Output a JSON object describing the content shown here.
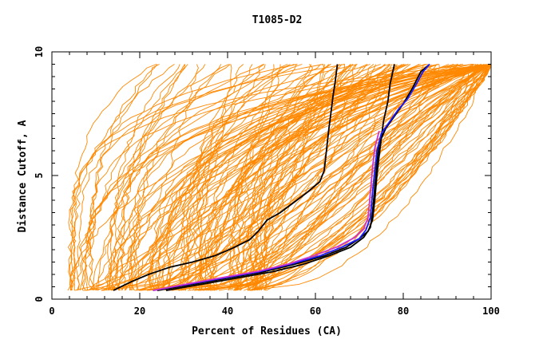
{
  "chart_data": {
    "type": "line",
    "title": "T1085-D2",
    "xlabel": "Percent of Residues (CA)",
    "ylabel": "Distance Cutoff, A",
    "xlim": [
      0,
      100
    ],
    "ylim": [
      0,
      10
    ],
    "x_ticks": [
      0,
      20,
      40,
      60,
      80,
      100
    ],
    "y_ticks": [
      0,
      5,
      10
    ],
    "grid": false,
    "legend": "none",
    "colors": {
      "bundle": "#ff8800",
      "highlight_black": "#000000",
      "highlight_blue": "#1a1aff",
      "highlight_magenta": "#cc33cc"
    },
    "bundle_count": 160,
    "highlight_series": [
      {
        "color": "#000000",
        "points": [
          [
            14,
            0.35
          ],
          [
            18,
            0.7
          ],
          [
            22,
            1.0
          ],
          [
            27,
            1.3
          ],
          [
            32,
            1.5
          ],
          [
            37,
            1.75
          ],
          [
            41,
            2.05
          ],
          [
            45,
            2.4
          ],
          [
            47,
            2.75
          ],
          [
            49,
            3.2
          ],
          [
            52,
            3.5
          ],
          [
            55,
            3.9
          ],
          [
            58,
            4.3
          ],
          [
            61,
            4.75
          ],
          [
            62,
            5.2
          ],
          [
            62.5,
            6
          ],
          [
            63,
            6.8
          ],
          [
            63.5,
            7.5
          ],
          [
            64,
            8.2
          ],
          [
            64.5,
            8.8
          ],
          [
            65,
            9.5
          ]
        ]
      },
      {
        "color": "#000000",
        "points": [
          [
            24,
            0.35
          ],
          [
            32,
            0.6
          ],
          [
            40,
            0.85
          ],
          [
            48,
            1.1
          ],
          [
            55,
            1.4
          ],
          [
            62,
            1.75
          ],
          [
            67,
            2.1
          ],
          [
            70,
            2.45
          ],
          [
            72,
            2.75
          ],
          [
            73,
            3.2
          ],
          [
            73.5,
            4.0
          ],
          [
            74,
            5.0
          ],
          [
            74.5,
            5.8
          ],
          [
            75,
            6.5
          ],
          [
            75.5,
            7.2
          ],
          [
            76.5,
            8.0
          ],
          [
            77,
            8.7
          ],
          [
            78,
            9.5
          ]
        ]
      },
      {
        "color": "#000000",
        "points": [
          [
            26,
            0.35
          ],
          [
            34,
            0.6
          ],
          [
            42,
            0.85
          ],
          [
            50,
            1.1
          ],
          [
            57,
            1.4
          ],
          [
            63,
            1.75
          ],
          [
            68,
            2.1
          ],
          [
            71,
            2.5
          ],
          [
            72.5,
            2.9
          ],
          [
            73,
            3.5
          ],
          [
            73.5,
            4.5
          ],
          [
            74,
            5.5
          ],
          [
            74.5,
            6.3
          ],
          [
            76,
            6.9
          ],
          [
            78,
            7.4
          ],
          [
            80,
            7.9
          ],
          [
            82,
            8.5
          ],
          [
            84,
            9.2
          ],
          [
            86,
            9.5
          ]
        ]
      },
      {
        "color": "#1a1aff",
        "points": [
          [
            23,
            0.35
          ],
          [
            31,
            0.6
          ],
          [
            39,
            0.85
          ],
          [
            47,
            1.1
          ],
          [
            54,
            1.4
          ],
          [
            61,
            1.75
          ],
          [
            66,
            2.1
          ],
          [
            70,
            2.45
          ],
          [
            71.5,
            2.8
          ],
          [
            72.5,
            3.3
          ],
          [
            73,
            4.3
          ],
          [
            73.5,
            5.2
          ],
          [
            74,
            6.0
          ],
          [
            75,
            6.7
          ],
          [
            77,
            7.2
          ],
          [
            79,
            7.7
          ],
          [
            81,
            8.1
          ],
          [
            83,
            8.7
          ],
          [
            84.5,
            9.2
          ],
          [
            86,
            9.5
          ]
        ]
      },
      {
        "color": "#cc33cc",
        "points": [
          [
            23,
            0.35
          ],
          [
            31,
            0.62
          ],
          [
            39,
            0.88
          ],
          [
            47,
            1.13
          ],
          [
            54,
            1.43
          ],
          [
            60,
            1.78
          ],
          [
            65,
            2.12
          ],
          [
            69,
            2.5
          ],
          [
            71,
            2.85
          ],
          [
            72,
            3.3
          ],
          [
            72.5,
            4.3
          ],
          [
            73,
            5.3
          ],
          [
            73.5,
            6.1
          ],
          [
            74.5,
            6.8
          ]
        ]
      }
    ]
  }
}
